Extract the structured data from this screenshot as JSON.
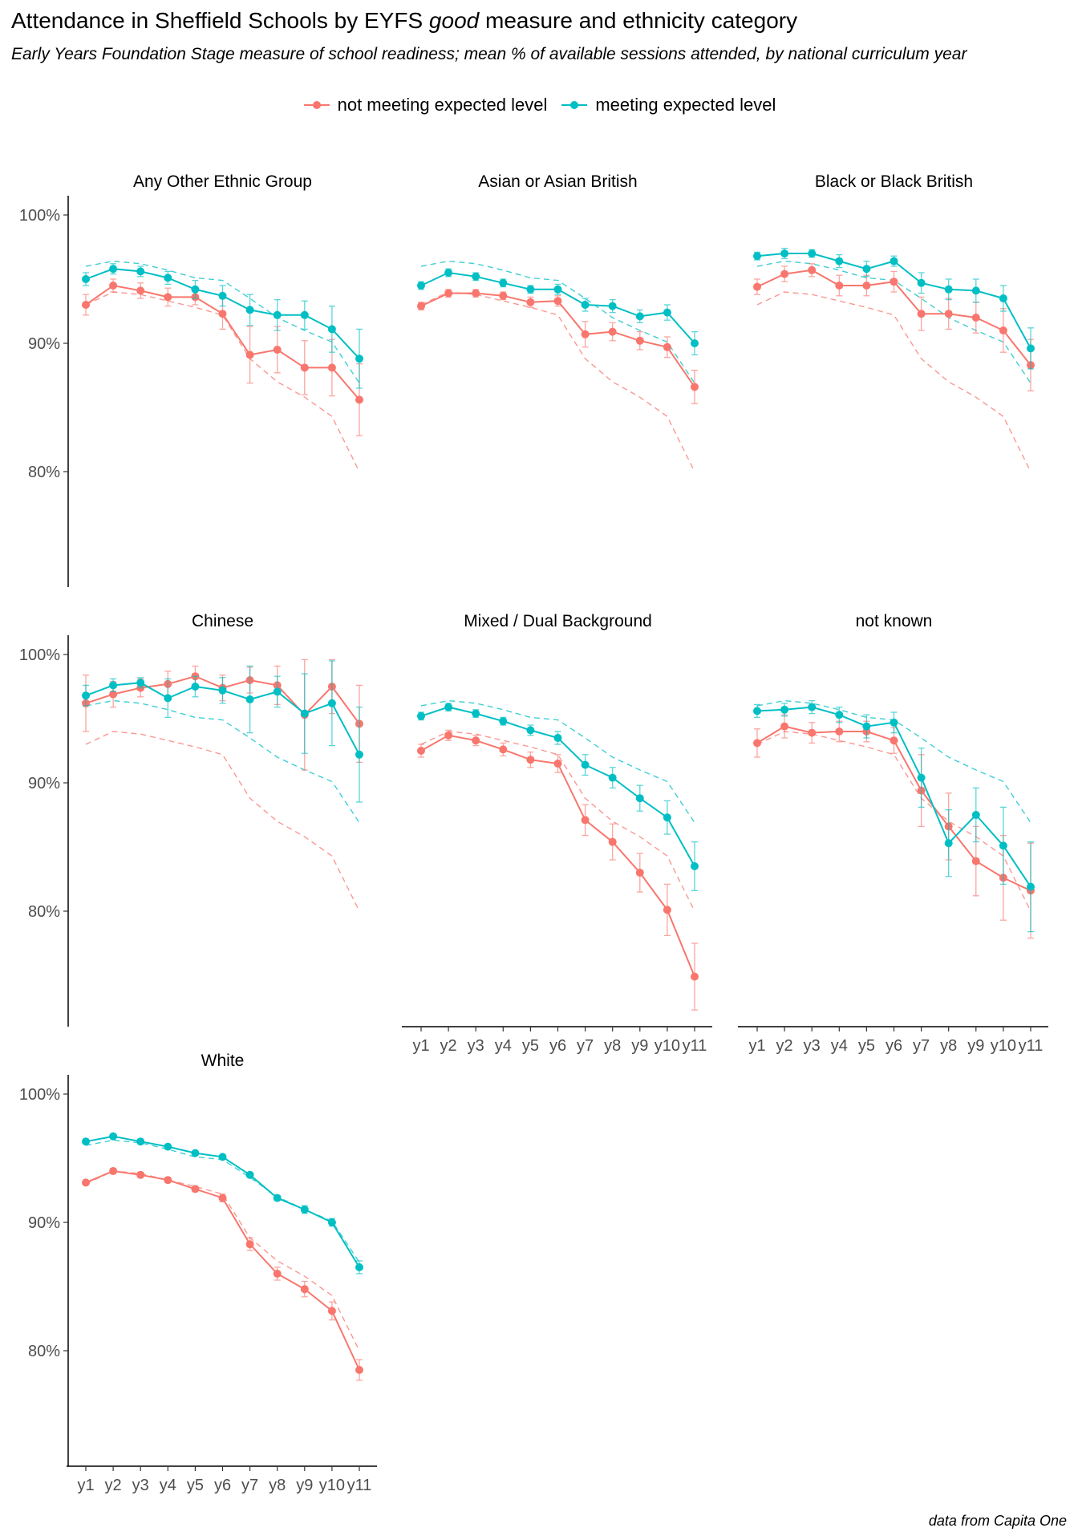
{
  "title_prefix": "Attendance in Sheffield Schools by EYFS ",
  "title_emph": "good",
  "title_suffix": " measure and ethnicity category",
  "subtitle": "Early Years Foundation Stage measure of school readiness; mean % of available sessions attended, by national curriculum year",
  "caption": "data from Capita One",
  "colors": {
    "not_meeting": "#F8766D",
    "meeting": "#00BFC4"
  },
  "chart_data": {
    "type": "line",
    "x": [
      "y1",
      "y2",
      "y3",
      "y4",
      "y5",
      "y6",
      "y7",
      "y8",
      "y9",
      "y10",
      "y11"
    ],
    "y_ticks": [
      "80%",
      "90%",
      "100%"
    ],
    "ylim": [
      71,
      101
    ],
    "series_names": [
      "not meeting expected level",
      "meeting expected level"
    ],
    "overall_reference": {
      "not meeting expected level": [
        93.0,
        94.0,
        93.8,
        93.3,
        92.8,
        92.2,
        88.8,
        87.0,
        85.8,
        84.3,
        80.0
      ],
      "meeting expected level": [
        96.0,
        96.4,
        96.2,
        95.7,
        95.1,
        94.9,
        93.5,
        92.0,
        91.0,
        90.1,
        86.9
      ]
    },
    "facets": [
      {
        "name": "Any Other Ethnic Group",
        "series": [
          {
            "name": "not meeting expected level",
            "values": [
              93.0,
              94.5,
              94.1,
              93.6,
              93.6,
              92.3,
              89.1,
              89.5,
              88.1,
              88.1,
              85.6
            ],
            "err": [
              0.8,
              0.5,
              0.6,
              0.7,
              0.6,
              1.2,
              2.2,
              1.8,
              2.1,
              2.2,
              2.8
            ]
          },
          {
            "name": "meeting expected level",
            "values": [
              95.0,
              95.8,
              95.6,
              95.1,
              94.2,
              93.7,
              92.6,
              92.2,
              92.2,
              91.1,
              88.8
            ],
            "err": [
              0.5,
              0.4,
              0.4,
              0.5,
              0.7,
              0.8,
              1.2,
              1.2,
              1.1,
              1.8,
              2.3
            ]
          }
        ]
      },
      {
        "name": "Asian or Asian British",
        "series": [
          {
            "name": "not meeting expected level",
            "values": [
              92.9,
              93.9,
              93.9,
              93.7,
              93.2,
              93.3,
              90.7,
              90.9,
              90.2,
              89.7,
              86.6
            ],
            "err": [
              0.3,
              0.3,
              0.3,
              0.3,
              0.4,
              0.4,
              1.0,
              0.7,
              0.7,
              0.8,
              1.3
            ]
          },
          {
            "name": "meeting expected level",
            "values": [
              94.5,
              95.5,
              95.2,
              94.7,
              94.2,
              94.2,
              93.0,
              92.9,
              92.1,
              92.4,
              90.0
            ],
            "err": [
              0.3,
              0.3,
              0.3,
              0.3,
              0.3,
              0.4,
              0.5,
              0.5,
              0.5,
              0.6,
              0.9
            ]
          }
        ]
      },
      {
        "name": "Black or Black British",
        "series": [
          {
            "name": "not meeting expected level",
            "values": [
              94.4,
              95.4,
              95.7,
              94.5,
              94.5,
              94.8,
              92.3,
              92.3,
              92.0,
              91.0,
              88.3
            ],
            "err": [
              0.6,
              0.6,
              0.5,
              0.8,
              0.8,
              0.8,
              1.3,
              1.2,
              1.2,
              1.7,
              2.0
            ]
          },
          {
            "name": "meeting expected level",
            "values": [
              96.8,
              97.0,
              97.0,
              96.4,
              95.8,
              96.4,
              94.7,
              94.2,
              94.1,
              93.5,
              89.6
            ],
            "err": [
              0.3,
              0.4,
              0.3,
              0.5,
              0.6,
              0.4,
              0.8,
              0.8,
              0.9,
              1.0,
              1.6
            ]
          }
        ]
      },
      {
        "name": "Chinese",
        "series": [
          {
            "name": "not meeting expected level",
            "values": [
              96.2,
              96.9,
              97.4,
              97.7,
              98.3,
              97.4,
              98.0,
              97.6,
              95.3,
              97.5,
              94.6
            ],
            "err": [
              2.2,
              1.0,
              0.7,
              1.0,
              0.8,
              1.0,
              1.0,
              1.5,
              4.3,
              2.1,
              3.0
            ]
          },
          {
            "name": "meeting expected level",
            "values": [
              96.8,
              97.6,
              97.8,
              96.6,
              97.5,
              97.2,
              96.5,
              97.1,
              95.4,
              96.2,
              92.2
            ],
            "err": [
              0.8,
              0.5,
              0.4,
              1.5,
              0.8,
              1.0,
              2.6,
              1.2,
              3.1,
              3.3,
              3.7
            ]
          }
        ]
      },
      {
        "name": "Mixed / Dual Background",
        "series": [
          {
            "name": "not meeting expected level",
            "values": [
              92.5,
              93.7,
              93.3,
              92.6,
              91.8,
              91.5,
              87.1,
              85.4,
              83.0,
              80.1,
              74.9
            ],
            "err": [
              0.5,
              0.4,
              0.4,
              0.5,
              0.6,
              0.7,
              1.2,
              1.4,
              1.5,
              2.0,
              2.6
            ]
          },
          {
            "name": "meeting expected level",
            "values": [
              95.2,
              95.9,
              95.4,
              94.8,
              94.1,
              93.5,
              91.4,
              90.4,
              88.8,
              87.3,
              83.5
            ],
            "err": [
              0.3,
              0.3,
              0.3,
              0.3,
              0.4,
              0.5,
              0.8,
              0.8,
              1.0,
              1.3,
              1.9
            ]
          }
        ]
      },
      {
        "name": "not known",
        "series": [
          {
            "name": "not meeting expected level",
            "values": [
              93.1,
              94.4,
              93.9,
              94.0,
              94.0,
              93.3,
              89.4,
              86.6,
              83.9,
              82.6,
              81.6
            ],
            "err": [
              1.1,
              0.9,
              0.8,
              0.8,
              0.8,
              1.0,
              2.8,
              2.6,
              2.7,
              3.3,
              3.7
            ]
          },
          {
            "name": "meeting expected level",
            "values": [
              95.6,
              95.7,
              95.9,
              95.3,
              94.4,
              94.7,
              90.4,
              85.3,
              87.5,
              85.1,
              81.9
            ],
            "err": [
              0.5,
              0.5,
              0.5,
              0.6,
              0.9,
              0.8,
              2.3,
              2.6,
              2.1,
              3.0,
              3.5
            ]
          }
        ]
      },
      {
        "name": "White",
        "series": [
          {
            "name": "not meeting expected level",
            "values": [
              93.1,
              94.0,
              93.7,
              93.3,
              92.6,
              91.9,
              88.3,
              86.0,
              84.8,
              83.1,
              78.5
            ],
            "err": [
              0.1,
              0.2,
              0.2,
              0.2,
              0.2,
              0.3,
              0.5,
              0.5,
              0.6,
              0.7,
              0.8
            ]
          },
          {
            "name": "meeting expected level",
            "values": [
              96.3,
              96.7,
              96.3,
              95.9,
              95.4,
              95.1,
              93.7,
              91.9,
              91.0,
              90.0,
              86.5
            ],
            "err": [
              0.1,
              0.1,
              0.1,
              0.1,
              0.1,
              0.1,
              0.2,
              0.2,
              0.3,
              0.3,
              0.5
            ]
          }
        ]
      }
    ]
  }
}
